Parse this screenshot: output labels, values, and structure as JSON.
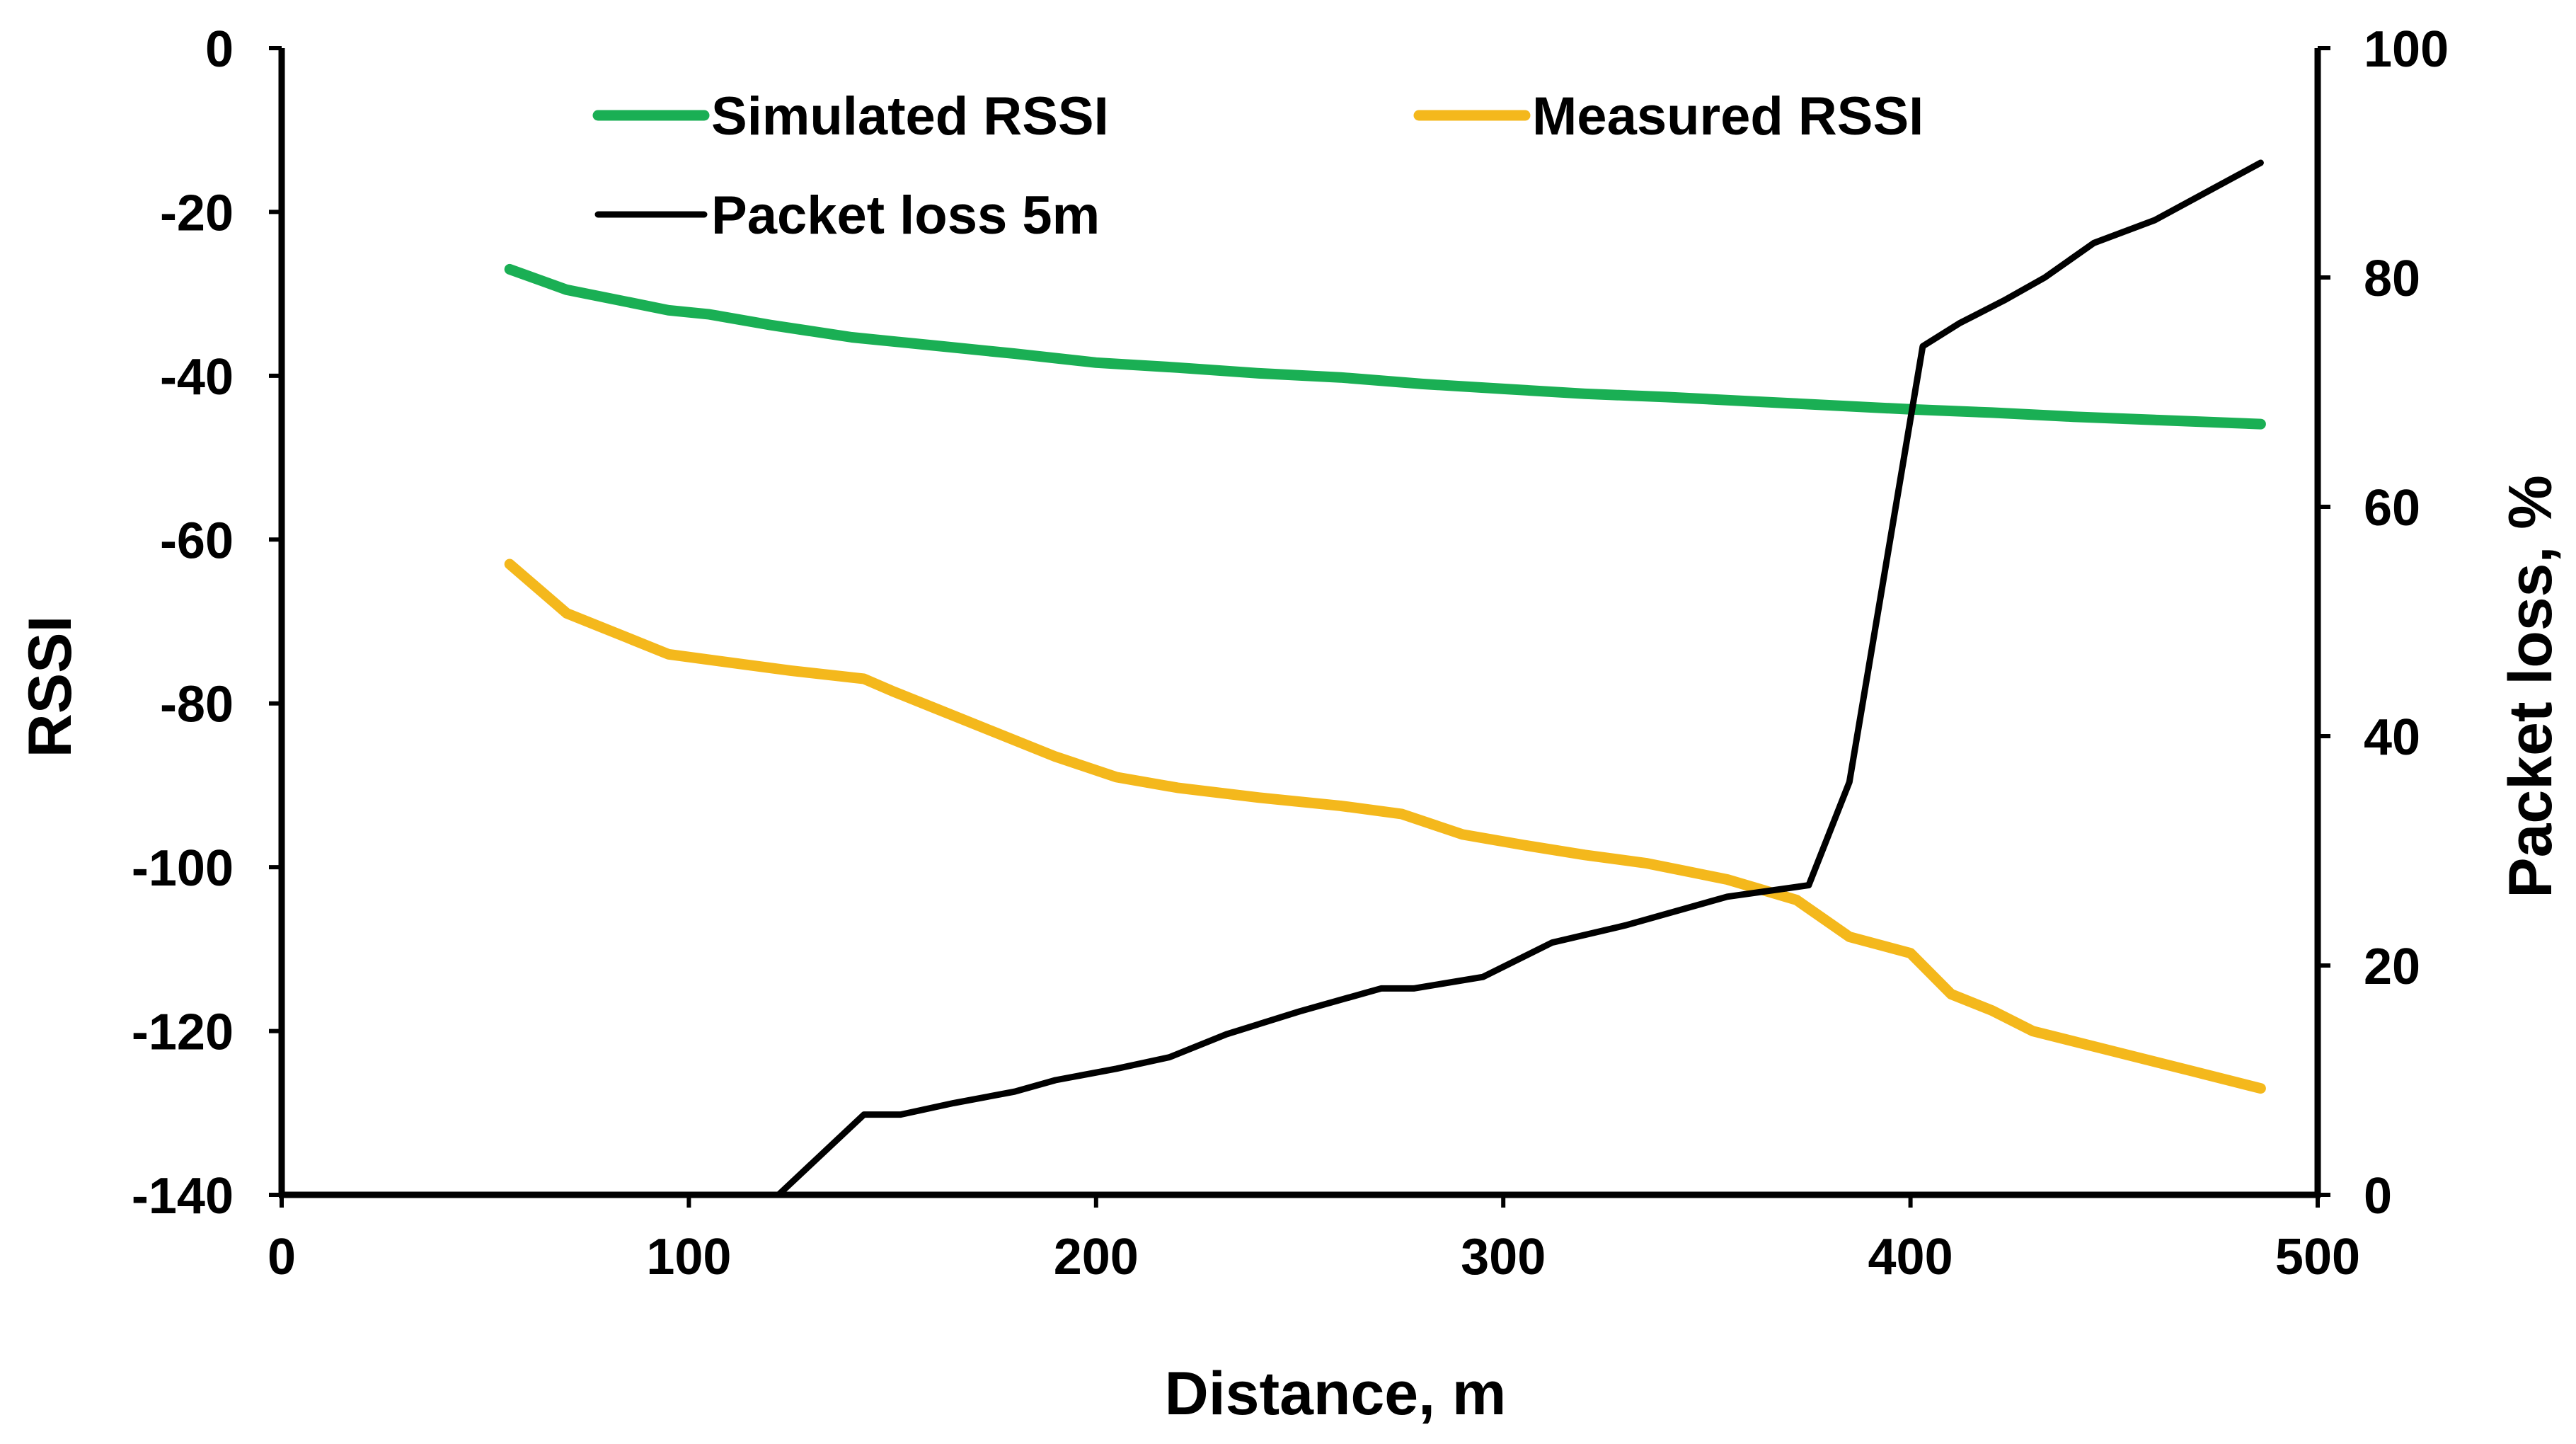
{
  "chart_data": {
    "type": "line",
    "title": "",
    "xlabel": "Distance, m",
    "ylabel": "RSSI",
    "y2label": "Packet loss, %",
    "xlim": [
      0,
      500
    ],
    "ylim": [
      -140,
      0
    ],
    "y2lim": [
      0,
      100
    ],
    "x_ticks": [
      "0",
      "100",
      "200",
      "300",
      "400",
      "500"
    ],
    "y_ticks": [
      "0",
      "-20",
      "-40",
      "-60",
      "-80",
      "-100",
      "-120",
      "-140"
    ],
    "y2_ticks": [
      "100",
      "80",
      "60",
      "40",
      "20",
      "0"
    ],
    "grid": false,
    "legend_position": "top",
    "series": [
      {
        "name": "Simulated RSSI",
        "axis": "left",
        "color": "#1aaf54",
        "x": [
          56,
          70,
          85,
          95,
          105,
          120,
          140,
          160,
          180,
          200,
          220,
          240,
          260,
          280,
          300,
          320,
          340,
          360,
          380,
          400,
          420,
          440,
          460,
          486
        ],
        "y": [
          -27,
          -29.5,
          -31,
          -32,
          -32.5,
          -33.8,
          -35.3,
          -36.3,
          -37.3,
          -38.4,
          -39,
          -39.7,
          -40.2,
          -41,
          -41.6,
          -42.2,
          -42.6,
          -43.1,
          -43.6,
          -44.1,
          -44.5,
          -45,
          -45.4,
          -45.9
        ]
      },
      {
        "name": "Measured RSSI",
        "axis": "left",
        "color": "#f4b81c",
        "x": [
          56,
          70,
          85,
          95,
          110,
          125,
          143,
          150,
          160,
          175,
          190,
          205,
          220,
          240,
          260,
          275,
          290,
          305,
          320,
          335,
          345,
          355,
          372,
          385,
          400,
          410,
          420,
          430,
          450,
          470,
          486
        ],
        "y": [
          -63,
          -69,
          -72,
          -74,
          -75,
          -76,
          -77,
          -78.5,
          -80.5,
          -83.5,
          -86.5,
          -89,
          -90.3,
          -91.5,
          -92.5,
          -93.5,
          -96,
          -97.3,
          -98.5,
          -99.5,
          -100.5,
          -101.5,
          -104,
          -108.5,
          -110.5,
          -115.5,
          -117.5,
          -120,
          -122.5,
          -125,
          -127
        ]
      },
      {
        "name": "Packet loss 5m",
        "axis": "right",
        "color": "#000000",
        "x": [
          122,
          143,
          152,
          165,
          180,
          190,
          205,
          218,
          232,
          250,
          270,
          278,
          295,
          312,
          330,
          355,
          375,
          385,
          403,
          412,
          423,
          433,
          445,
          460,
          486
        ],
        "y": [
          0,
          7,
          7,
          8,
          9,
          10,
          11,
          12,
          14,
          16,
          18,
          18,
          19,
          22,
          23.5,
          26,
          27,
          36,
          74,
          76,
          78,
          80,
          83,
          85,
          90
        ]
      }
    ]
  }
}
